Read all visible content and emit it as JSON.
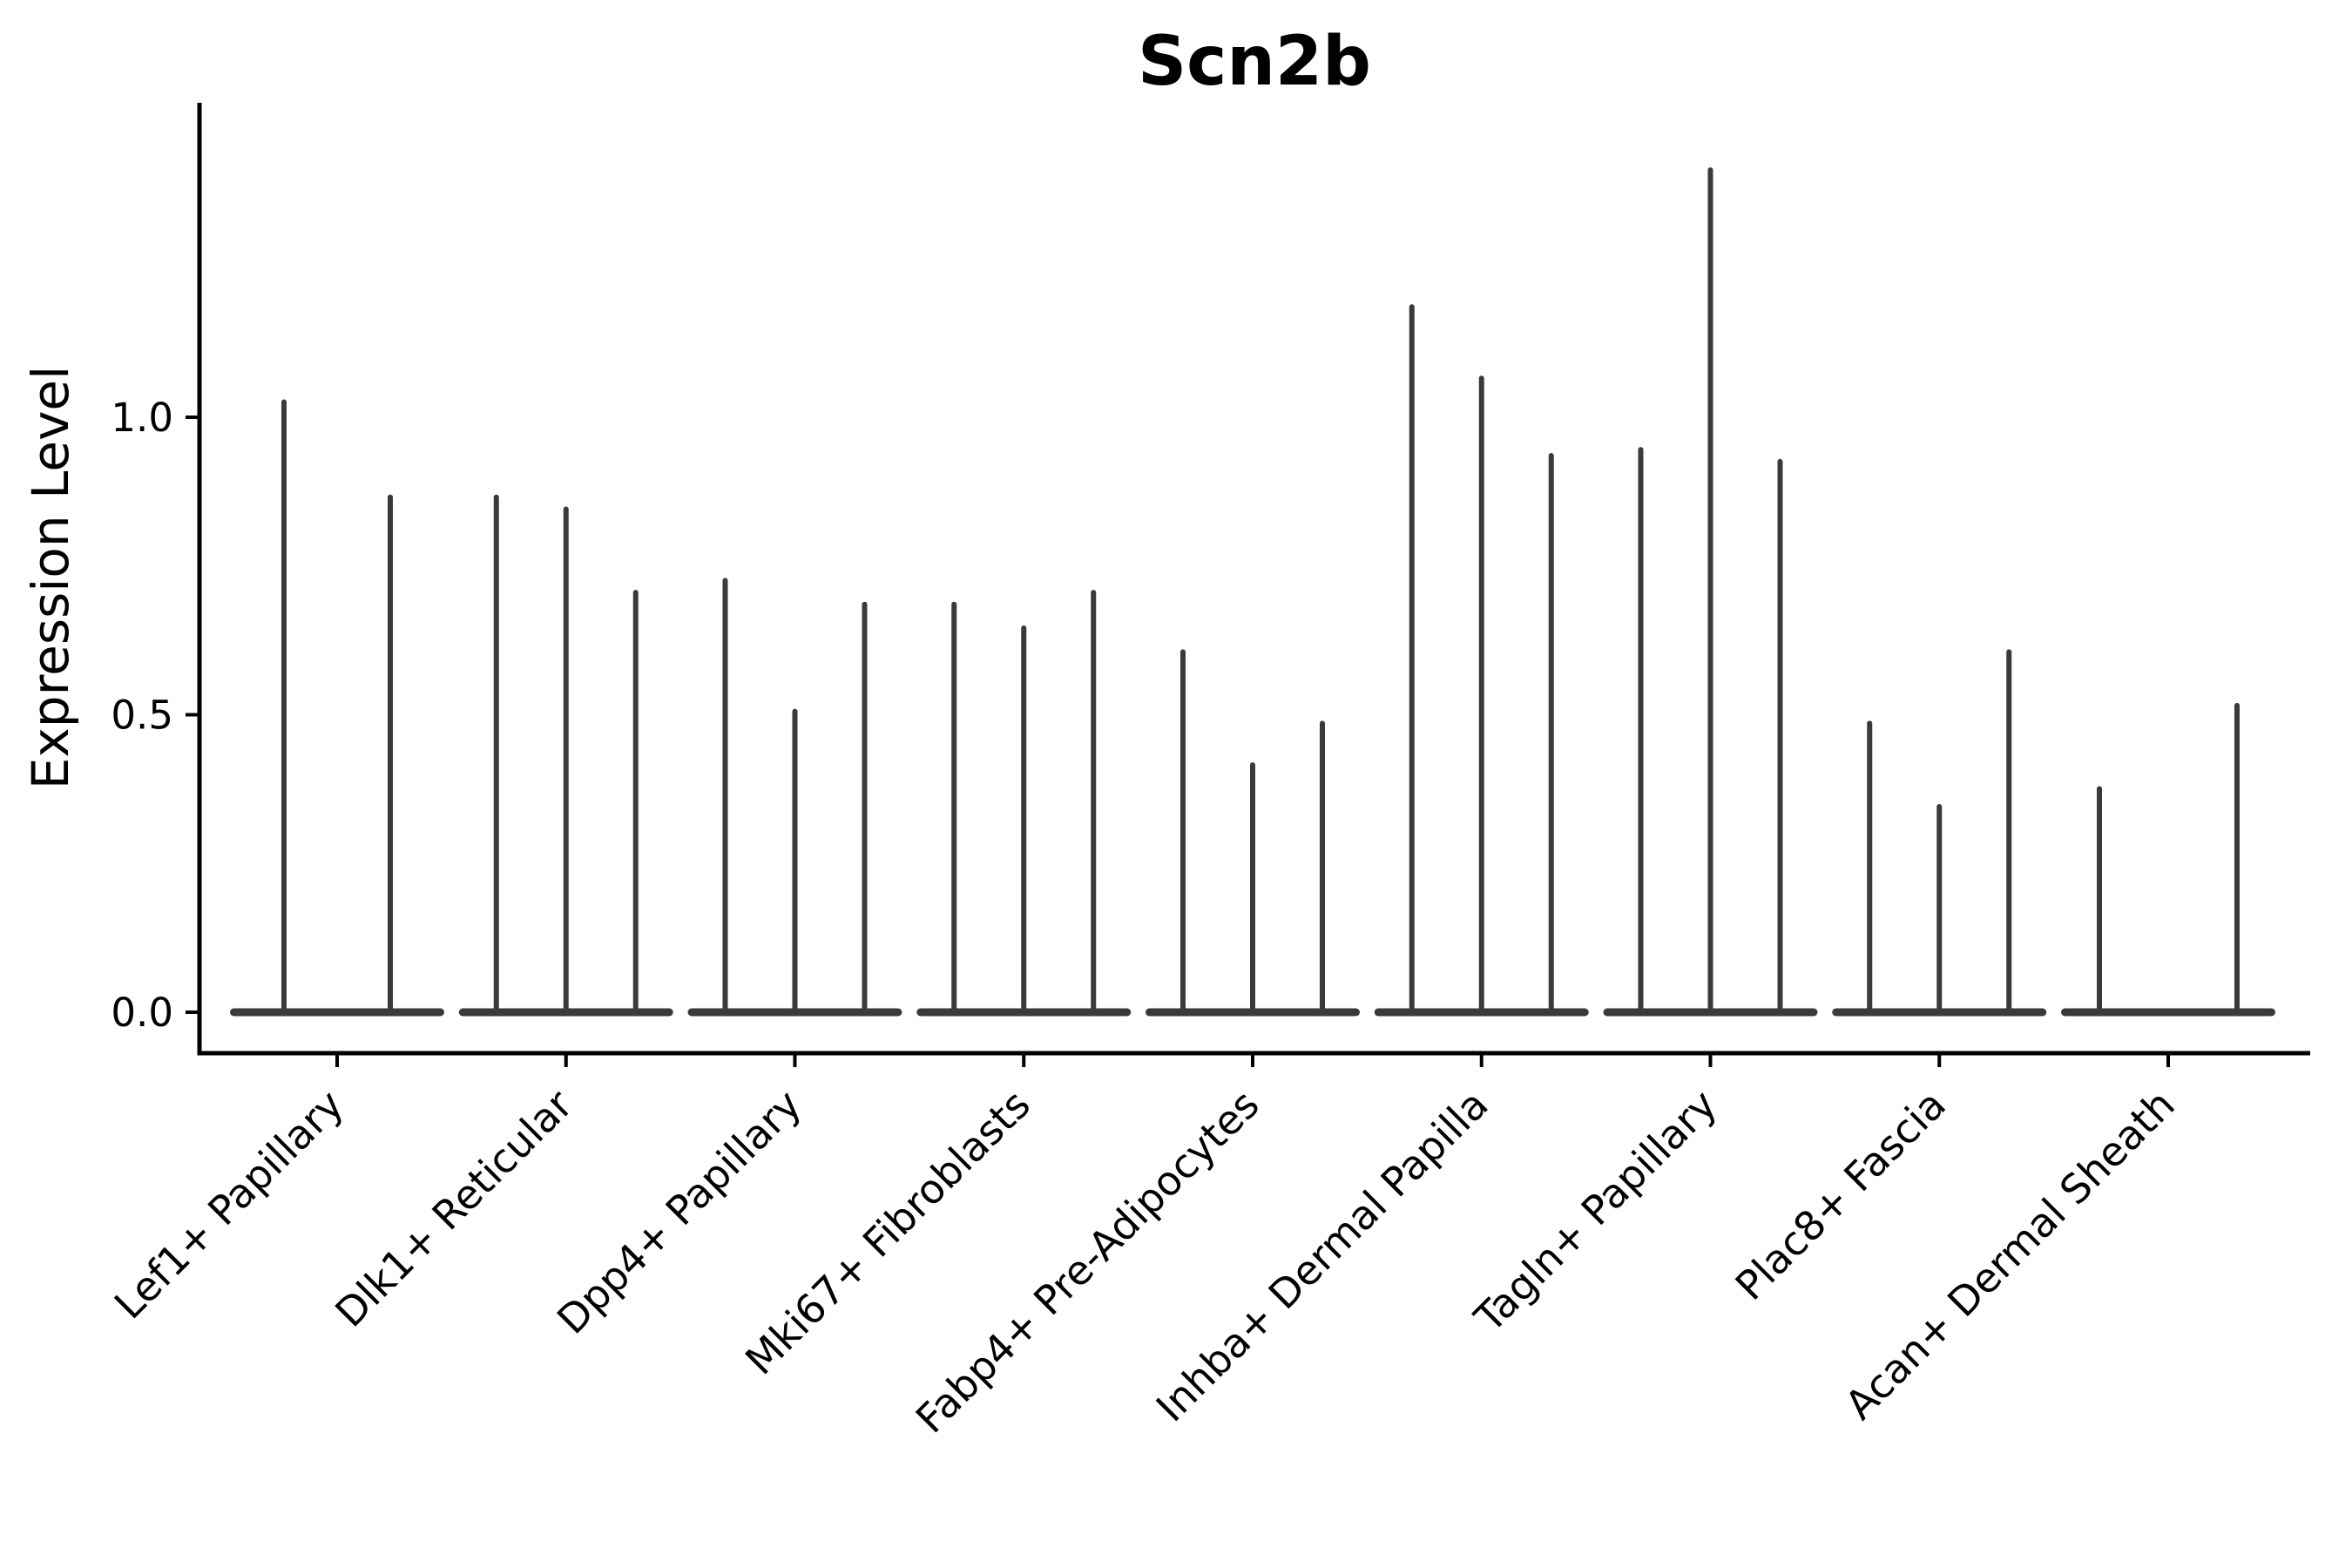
{
  "chart_data": {
    "type": "violin",
    "title": "Scn2b",
    "ylabel": "Expression Level",
    "xlabel": "",
    "ytick_labels": [
      "0.0",
      "0.5",
      "1.0"
    ],
    "ytick_values": [
      0.0,
      0.5,
      1.0
    ],
    "ylim": [
      -0.07,
      1.53
    ],
    "grid": false,
    "legend": "none",
    "violin_color": "#3a3a3a",
    "axis_color": "#000000",
    "categories": [
      "Lef1+ Papillary",
      "Dlk1+ Reticular",
      "Dpp4+ Papillary",
      "Mki67+ Fibroblasts",
      "Fabp4+ Pre-Adipocytes",
      "Inhba+ Dermal Papilla",
      "Tagln+ Papillary",
      "Plac8+ Fascia",
      "Acan+ Dermal Sheath"
    ],
    "groups": [
      {
        "label": "Lef1+ Papillary",
        "spikes": [
          {
            "offset": -61,
            "max": 1.03
          },
          {
            "offset": 61,
            "max": 0.87
          }
        ]
      },
      {
        "label": "Dlk1+ Reticular",
        "spikes": [
          {
            "offset": -80,
            "max": 0.87
          },
          {
            "offset": 0,
            "max": 0.85
          },
          {
            "offset": 80,
            "max": 0.71
          }
        ]
      },
      {
        "label": "Dpp4+ Papillary",
        "spikes": [
          {
            "offset": -80,
            "max": 0.73
          },
          {
            "offset": 0,
            "max": 0.51
          },
          {
            "offset": 80,
            "max": 0.69
          }
        ]
      },
      {
        "label": "Mki67+ Fibroblasts",
        "spikes": [
          {
            "offset": -80,
            "max": 0.69
          },
          {
            "offset": 0,
            "max": 0.65
          },
          {
            "offset": 80,
            "max": 0.71
          }
        ]
      },
      {
        "label": "Fabp4+ Pre-Adipocytes",
        "spikes": [
          {
            "offset": -80,
            "max": 0.61
          },
          {
            "offset": 0,
            "max": 0.42
          },
          {
            "offset": 80,
            "max": 0.49
          }
        ]
      },
      {
        "label": "Inhba+ Dermal Papilla",
        "spikes": [
          {
            "offset": -80,
            "max": 1.19
          },
          {
            "offset": 0,
            "max": 1.07
          },
          {
            "offset": 80,
            "max": 0.94
          }
        ]
      },
      {
        "label": "Tagln+ Papillary",
        "spikes": [
          {
            "offset": -80,
            "max": 0.95
          },
          {
            "offset": 0,
            "max": 1.42
          },
          {
            "offset": 80,
            "max": 0.93
          }
        ]
      },
      {
        "label": "Plac8+ Fascia",
        "spikes": [
          {
            "offset": -80,
            "max": 0.49
          },
          {
            "offset": 0,
            "max": 0.35
          },
          {
            "offset": 80,
            "max": 0.61
          }
        ]
      },
      {
        "label": "Acan+ Dermal Sheath",
        "spikes": [
          {
            "offset": -79,
            "max": 0.38
          },
          {
            "offset": 79,
            "max": 0.52
          }
        ]
      }
    ],
    "base_halfwidth": 123
  }
}
